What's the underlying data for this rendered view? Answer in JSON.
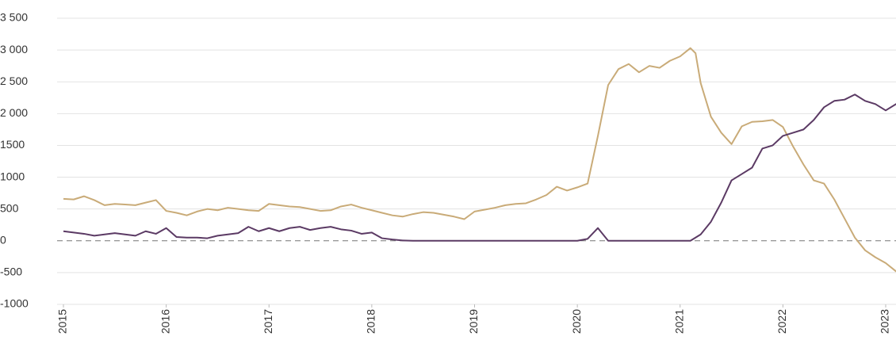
{
  "chart_data": {
    "type": "line",
    "x": [
      2015.0,
      2015.1,
      2015.2,
      2015.3,
      2015.4,
      2015.5,
      2015.6,
      2015.7,
      2015.8,
      2015.9,
      2016.0,
      2016.1,
      2016.2,
      2016.3,
      2016.4,
      2016.5,
      2016.6,
      2016.7,
      2016.8,
      2016.9,
      2017.0,
      2017.1,
      2017.2,
      2017.3,
      2017.4,
      2017.5,
      2017.6,
      2017.7,
      2017.8,
      2017.9,
      2018.0,
      2018.1,
      2018.2,
      2018.3,
      2018.4,
      2018.5,
      2018.6,
      2018.7,
      2018.8,
      2018.9,
      2019.0,
      2019.1,
      2019.2,
      2019.3,
      2019.4,
      2019.5,
      2019.6,
      2019.7,
      2019.8,
      2019.9,
      2020.0,
      2020.1,
      2020.2,
      2020.3,
      2020.4,
      2020.5,
      2020.6,
      2020.7,
      2020.8,
      2020.9,
      2021.0,
      2021.1,
      2021.15,
      2021.2,
      2021.3,
      2021.4,
      2021.5,
      2021.6,
      2021.7,
      2021.8,
      2021.9,
      2022.0,
      2022.1,
      2022.2,
      2022.3,
      2022.4,
      2022.5,
      2022.6,
      2022.7,
      2022.8,
      2022.9,
      2023.0,
      2023.1,
      2023.2
    ],
    "series": [
      {
        "color": "#c9ab78",
        "values": [
          660,
          650,
          700,
          640,
          560,
          580,
          570,
          560,
          600,
          640,
          470,
          440,
          400,
          460,
          500,
          480,
          520,
          500,
          480,
          470,
          580,
          560,
          540,
          530,
          500,
          470,
          480,
          540,
          570,
          520,
          480,
          440,
          400,
          380,
          420,
          450,
          440,
          410,
          380,
          340,
          460,
          490,
          520,
          560,
          580,
          590,
          650,
          720,
          850,
          790,
          840,
          900,
          1650,
          2450,
          2700,
          2780,
          2650,
          2750,
          2720,
          2830,
          2900,
          3030,
          2950,
          2480,
          1950,
          1700,
          1520,
          1800,
          1870,
          1880,
          1900,
          1790,
          1480,
          1200,
          950,
          900,
          650,
          350,
          50,
          -150,
          -260,
          -350,
          -480,
          -500
        ]
      },
      {
        "color": "#5b3a64",
        "values": [
          150,
          130,
          110,
          80,
          100,
          120,
          100,
          80,
          150,
          110,
          200,
          60,
          50,
          50,
          40,
          80,
          100,
          120,
          220,
          150,
          200,
          150,
          200,
          220,
          170,
          200,
          220,
          180,
          160,
          110,
          130,
          40,
          20,
          5,
          0,
          0,
          0,
          0,
          0,
          0,
          0,
          0,
          0,
          0,
          0,
          0,
          0,
          0,
          0,
          0,
          0,
          30,
          200,
          0,
          0,
          0,
          0,
          0,
          0,
          0,
          0,
          0,
          50,
          100,
          300,
          600,
          950,
          1050,
          1150,
          1450,
          1500,
          1650,
          1700,
          1750,
          1900,
          2100,
          2200,
          2220,
          2300,
          2200,
          2150,
          2050,
          2150,
          2200
        ]
      }
    ],
    "xlim": [
      2015,
      2023.2
    ],
    "xticks": [
      2015,
      2016,
      2017,
      2018,
      2019,
      2020,
      2021,
      2022,
      2023
    ],
    "ylim": [
      -1000,
      3500
    ],
    "yticks": [
      -1000,
      -500,
      0,
      500,
      1000,
      1500,
      {
        "value": 2000,
        "label": "2 000"
      },
      {
        "value": 2500,
        "label": "2 500"
      },
      {
        "value": 3000,
        "label": "3 000"
      },
      {
        "value": 3500,
        "label": "3 500"
      }
    ],
    "grid": true
  }
}
